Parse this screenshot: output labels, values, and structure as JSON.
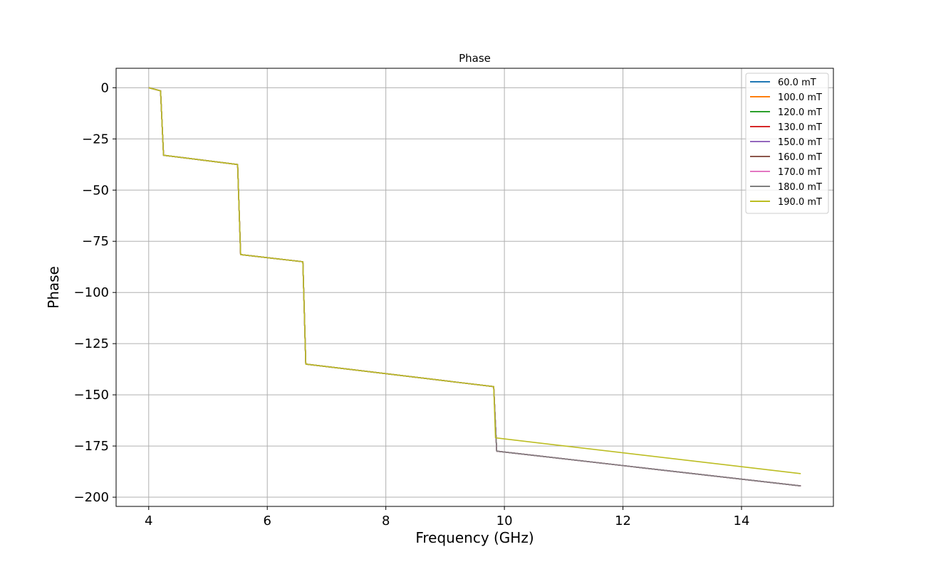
{
  "chart_data": {
    "type": "line",
    "title": "Phase",
    "xlabel": "Frequency (GHz)",
    "ylabel": "Phase",
    "xlim": [
      3.45,
      15.55
    ],
    "ylim": [
      -204.5,
      9.5
    ],
    "xticks": [
      4,
      6,
      8,
      10,
      12,
      14
    ],
    "yticks": [
      0,
      -25,
      -50,
      -75,
      -100,
      -125,
      -150,
      -175,
      -200
    ],
    "grid": true,
    "legend_position": "top-right",
    "series": [
      {
        "name": "60.0 mT",
        "color": "#1f77b4",
        "points": [
          [
            4.0,
            0
          ],
          [
            4.2,
            -1.5
          ],
          [
            4.25,
            -33
          ],
          [
            5.5,
            -37.5
          ],
          [
            5.55,
            -81.5
          ],
          [
            6.6,
            -85
          ],
          [
            6.65,
            -135
          ],
          [
            9.82,
            -146
          ],
          [
            9.87,
            -177.5
          ],
          [
            15.0,
            -194.5
          ]
        ]
      },
      {
        "name": "100.0 mT",
        "color": "#ff7f0e",
        "points": [
          [
            4.0,
            0
          ],
          [
            4.2,
            -1.5
          ],
          [
            4.25,
            -33
          ],
          [
            5.5,
            -37.5
          ],
          [
            5.55,
            -81.5
          ],
          [
            6.6,
            -85
          ],
          [
            6.65,
            -135
          ],
          [
            9.82,
            -146
          ],
          [
            9.87,
            -177.5
          ],
          [
            15.0,
            -194.5
          ]
        ]
      },
      {
        "name": "120.0 mT",
        "color": "#2ca02c",
        "points": [
          [
            4.0,
            0
          ],
          [
            4.2,
            -1.5
          ],
          [
            4.25,
            -33
          ],
          [
            5.5,
            -37.5
          ],
          [
            5.55,
            -81.5
          ],
          [
            6.6,
            -85
          ],
          [
            6.65,
            -135
          ],
          [
            9.82,
            -146
          ],
          [
            9.87,
            -177.5
          ],
          [
            15.0,
            -194.5
          ]
        ]
      },
      {
        "name": "130.0 mT",
        "color": "#d62728",
        "points": [
          [
            4.0,
            0
          ],
          [
            4.2,
            -1.5
          ],
          [
            4.25,
            -33
          ],
          [
            5.5,
            -37.5
          ],
          [
            5.55,
            -81.5
          ],
          [
            6.6,
            -85
          ],
          [
            6.65,
            -135
          ],
          [
            9.82,
            -146
          ],
          [
            9.87,
            -177.5
          ],
          [
            15.0,
            -194.5
          ]
        ]
      },
      {
        "name": "150.0 mT",
        "color": "#9467bd",
        "points": [
          [
            4.0,
            0
          ],
          [
            4.2,
            -1.5
          ],
          [
            4.25,
            -33
          ],
          [
            5.5,
            -37.5
          ],
          [
            5.55,
            -81.5
          ],
          [
            6.6,
            -85
          ],
          [
            6.65,
            -135
          ],
          [
            9.82,
            -146
          ],
          [
            9.87,
            -177.5
          ],
          [
            15.0,
            -194.5
          ]
        ]
      },
      {
        "name": "160.0 mT",
        "color": "#8c564b",
        "points": [
          [
            4.0,
            0
          ],
          [
            4.2,
            -1.5
          ],
          [
            4.25,
            -33
          ],
          [
            5.5,
            -37.5
          ],
          [
            5.55,
            -81.5
          ],
          [
            6.6,
            -85
          ],
          [
            6.65,
            -135
          ],
          [
            9.82,
            -146
          ],
          [
            9.87,
            -177.5
          ],
          [
            15.0,
            -194.5
          ]
        ]
      },
      {
        "name": "170.0 mT",
        "color": "#e377c2",
        "points": [
          [
            4.0,
            0
          ],
          [
            4.2,
            -1.5
          ],
          [
            4.25,
            -33
          ],
          [
            5.5,
            -37.5
          ],
          [
            5.55,
            -81.5
          ],
          [
            6.6,
            -85
          ],
          [
            6.65,
            -135
          ],
          [
            9.82,
            -146
          ],
          [
            9.87,
            -177.5
          ],
          [
            15.0,
            -194.5
          ]
        ]
      },
      {
        "name": "180.0 mT",
        "color": "#7f7f7f",
        "points": [
          [
            4.0,
            0
          ],
          [
            4.2,
            -1.5
          ],
          [
            4.25,
            -33
          ],
          [
            5.5,
            -37.5
          ],
          [
            5.55,
            -81.5
          ],
          [
            6.6,
            -85
          ],
          [
            6.65,
            -135
          ],
          [
            9.82,
            -146
          ],
          [
            9.87,
            -177.5
          ],
          [
            15.0,
            -194.5
          ]
        ]
      },
      {
        "name": "190.0 mT",
        "color": "#bcbd22",
        "points": [
          [
            4.0,
            0
          ],
          [
            4.2,
            -1.5
          ],
          [
            4.25,
            -33
          ],
          [
            5.5,
            -37.5
          ],
          [
            5.55,
            -81.5
          ],
          [
            6.6,
            -85
          ],
          [
            6.65,
            -135
          ],
          [
            9.82,
            -146
          ],
          [
            9.85,
            -171
          ],
          [
            15.0,
            -188.5
          ]
        ]
      }
    ]
  }
}
